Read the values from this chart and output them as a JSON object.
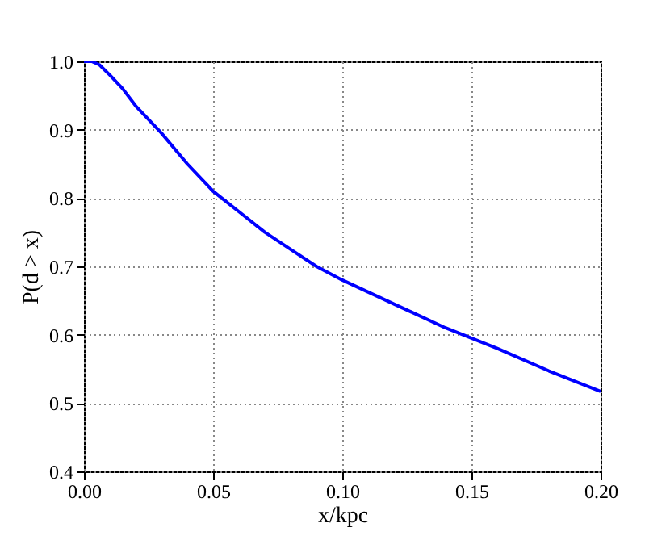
{
  "chart_data": {
    "type": "line",
    "xlabel": "x/kpc",
    "ylabel": "P(d > x)",
    "xlim": [
      0,
      0.2
    ],
    "ylim": [
      0.4,
      1.0
    ],
    "xticks": [
      {
        "value": 0,
        "label": "0.00"
      },
      {
        "value": 0.05,
        "label": "0.05"
      },
      {
        "value": 0.1,
        "label": "0.10"
      },
      {
        "value": 0.15,
        "label": "0.15"
      },
      {
        "value": 0.2,
        "label": "0.20"
      }
    ],
    "yticks": [
      0.4,
      0.5,
      0.6,
      0.7,
      0.8,
      0.9,
      {
        "value": 1,
        "label": "1.0"
      }
    ],
    "grid": true,
    "line_style": "solid",
    "marker": "none",
    "x": [
      0,
      0.003,
      0.006,
      0.01,
      0.015,
      0.02,
      0.03,
      0.04,
      0.05,
      0.06,
      0.07,
      0.08,
      0.09,
      0.1,
      0.12,
      0.14,
      0.15,
      0.16,
      0.18,
      0.2
    ],
    "series": [
      {
        "color": "#0000ff",
        "values": [
          1.0,
          1.0,
          0.995,
          0.98,
          0.96,
          0.935,
          0.895,
          0.85,
          0.81,
          0.78,
          0.75,
          0.725,
          0.7,
          0.68,
          0.645,
          0.61,
          0.595,
          0.58,
          0.547,
          0.517
        ]
      }
    ]
  }
}
